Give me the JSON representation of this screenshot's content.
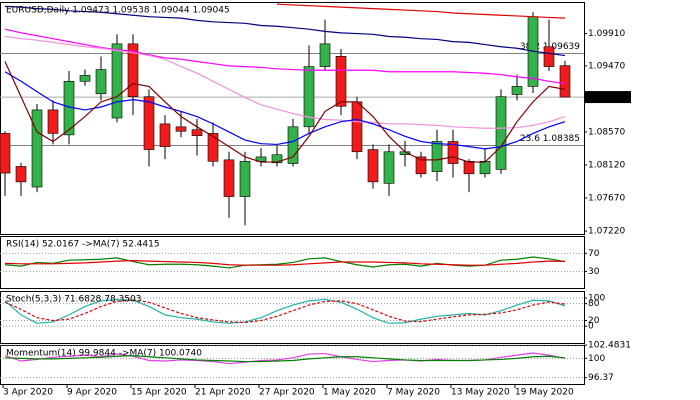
{
  "chart_data": [
    {
      "type": "candlestick",
      "title": "EURUSD,Daily  1.09473 1.09538 1.09044 1.09045",
      "categories": [
        "3 Apr 2020",
        null,
        null,
        null,
        "9 Apr 2020",
        null,
        null,
        null,
        "15 Apr 2020",
        null,
        null,
        null,
        "21 Apr 2020",
        null,
        null,
        null,
        "27 Apr 2020",
        null,
        null,
        null,
        "1 May 2020",
        null,
        null,
        null,
        "7 May 2020",
        null,
        null,
        null,
        "13 May 2020",
        null,
        null,
        null,
        "19 May 2020",
        null,
        null,
        null
      ],
      "open": [
        1.0855,
        1.081,
        1.0782,
        1.0887,
        1.0853,
        1.0926,
        1.0909,
        1.0876,
        1.0977,
        1.0905,
        1.0868,
        1.0864,
        1.086,
        1.0855,
        1.0819,
        1.0769,
        1.0817,
        1.0815,
        1.0814,
        1.0864,
        1.0946,
        1.096,
        1.0898,
        1.0833,
        1.0787,
        1.0826,
        1.0823,
        1.0803,
        1.0844,
        1.0817,
        1.08,
        1.0806,
        1.0908,
        1.0919,
        1.0973,
        1.09473
      ],
      "high": [
        1.0858,
        1.0815,
        1.0895,
        1.09,
        1.094,
        1.0942,
        1.096,
        1.099,
        1.099,
        1.0915,
        1.088,
        1.0885,
        1.0875,
        1.087,
        1.083,
        1.083,
        1.0835,
        1.0838,
        1.0875,
        1.0975,
        1.101,
        1.097,
        1.0905,
        1.084,
        1.084,
        1.0845,
        1.083,
        1.086,
        1.086,
        1.082,
        1.0835,
        1.0915,
        1.0935,
        1.102,
        1.101,
        1.09538
      ],
      "low": [
        1.077,
        1.077,
        1.0775,
        1.084,
        1.084,
        1.092,
        1.09,
        1.087,
        1.088,
        1.081,
        1.082,
        1.085,
        1.0825,
        1.081,
        1.074,
        1.073,
        1.081,
        1.081,
        1.081,
        1.0855,
        1.094,
        1.088,
        1.082,
        1.078,
        1.077,
        1.081,
        1.0795,
        1.079,
        1.0795,
        1.0775,
        1.0795,
        1.08,
        1.09,
        1.091,
        1.094,
        1.09044
      ],
      "close": [
        1.0801,
        1.0789,
        1.0887,
        1.0855,
        1.0926,
        1.0934,
        1.0942,
        1.0977,
        1.0905,
        1.0833,
        1.0837,
        1.0858,
        1.0852,
        1.0817,
        1.0769,
        1.0817,
        1.0823,
        1.0826,
        1.0864,
        1.0946,
        1.0977,
        1.0892,
        1.083,
        1.0789,
        1.083,
        1.083,
        1.08,
        1.0844,
        1.0814,
        1.08,
        1.0817,
        1.0905,
        1.0919,
        1.1014,
        1.0946,
        1.09045
      ],
      "up_color": "#33b249",
      "down_color": "#f01c1c",
      "series": [
        {
          "color": "#e00000",
          "values": [
            null,
            null,
            null,
            null,
            null,
            null,
            null,
            null,
            null,
            null,
            null,
            null,
            null,
            null,
            null,
            null,
            null,
            1.1031,
            1.103,
            1.1029,
            1.1028,
            1.1027,
            1.1026,
            1.1025,
            1.1024,
            1.1023,
            1.1022,
            1.1021,
            1.1019,
            1.1018,
            1.1017,
            1.1016,
            1.1015,
            1.1014,
            1.1013,
            1.1012
          ]
        },
        {
          "color": "#000080",
          "values": [
            1.1028,
            1.1027,
            1.1025,
            1.1024,
            1.1022,
            1.1021,
            1.102,
            1.1018,
            1.1016,
            1.1014,
            1.1013,
            1.1012,
            1.1009,
            1.1007,
            1.1006,
            1.1005,
            1.1002,
            1.1001,
            1.0999,
            1.0997,
            1.0994,
            1.0992,
            1.0991,
            1.099,
            1.0987,
            1.0986,
            1.0984,
            1.0983,
            1.098,
            1.0979,
            1.0976,
            1.0973,
            1.0971,
            1.0967,
            1.0964,
            1.0961
          ]
        },
        {
          "color": "#ff00ff",
          "values": [
            1.0997,
            1.0992,
            1.0988,
            1.0984,
            1.098,
            1.0976,
            1.0972,
            1.0969,
            1.0967,
            1.0962,
            1.0958,
            1.0956,
            1.0953,
            1.095,
            1.0947,
            1.0946,
            1.0945,
            1.0943,
            1.0942,
            1.0941,
            1.0941,
            1.0941,
            1.0941,
            1.0941,
            1.0939,
            1.0939,
            1.0939,
            1.0939,
            1.0939,
            1.0938,
            1.0937,
            1.0935,
            1.0932,
            1.093,
            1.0926,
            1.0923
          ]
        },
        {
          "color": "#ee90dd",
          "values": [
            1.0987,
            1.0984,
            1.0982,
            1.0979,
            1.0976,
            1.0973,
            1.0971,
            1.0968,
            1.0965,
            1.0961,
            1.0956,
            1.0946,
            1.0937,
            1.0926,
            1.0915,
            1.0904,
            1.0894,
            1.0888,
            1.0882,
            1.0877,
            1.0874,
            1.0873,
            1.0871,
            1.087,
            1.0868,
            1.0868,
            1.0867,
            1.0866,
            1.0864,
            1.0863,
            1.0862,
            1.0862,
            1.0863,
            1.0866,
            1.0871,
            1.0878
          ]
        },
        {
          "color": "#0000ff",
          "values": [
            1.0939,
            1.0926,
            1.0912,
            1.0898,
            1.0891,
            1.0887,
            1.0891,
            1.0898,
            1.0901,
            1.0898,
            1.0891,
            1.0885,
            1.0878,
            1.0868,
            1.0857,
            1.0846,
            1.0841,
            1.084,
            1.0844,
            1.0855,
            1.0864,
            1.0871,
            1.0874,
            1.0868,
            1.086,
            1.0851,
            1.0844,
            1.0841,
            1.084,
            1.0837,
            1.0834,
            1.0837,
            1.0844,
            1.0855,
            1.0864,
            1.0871
          ]
        },
        {
          "color": "#800000",
          "values": [
            1.0953,
            1.0905,
            1.0857,
            1.0844,
            1.086,
            1.0878,
            1.0898,
            1.0905,
            1.0923,
            1.0919,
            1.0898,
            1.0878,
            1.0864,
            1.0851,
            1.0837,
            1.0823,
            1.0816,
            1.0816,
            1.0823,
            1.0851,
            1.0885,
            1.0898,
            1.0898,
            1.0878,
            1.0851,
            1.083,
            1.0819,
            1.0819,
            1.0823,
            1.0816,
            1.0816,
            1.0837,
            1.0871,
            1.0898,
            1.0919,
            1.0915
          ]
        }
      ],
      "ylim": [
        1.0718,
        1.1034
      ],
      "yticks": [
        {
          "value": 1.0991,
          "label": "1.09910"
        },
        {
          "value": 1.0947,
          "label": "1.09470"
        },
        {
          "value": 1.0857,
          "label": "1.08570"
        },
        {
          "value": 1.0812,
          "label": "1.08120"
        },
        {
          "value": 1.0767,
          "label": "1.07670"
        },
        {
          "value": 1.0722,
          "label": "1.07220"
        }
      ],
      "fib_levels": [
        {
          "value": 1.09639,
          "label": "38.2 1.09639"
        },
        {
          "value": 1.08385,
          "label": "23.6 1.08385"
        }
      ],
      "last_price": 1.09045,
      "grid": false
    },
    {
      "type": "line",
      "title": "RSI(14) 52.0167 ->MA(7) 52.4415",
      "series": [
        {
          "color": "#008000",
          "values": [
            45,
            42,
            50,
            48,
            55,
            56,
            57,
            60,
            52,
            45,
            46,
            46,
            45,
            42,
            38,
            44,
            45,
            46,
            50,
            58,
            60,
            52,
            45,
            40,
            45,
            46,
            42,
            48,
            44,
            42,
            44,
            55,
            57,
            62,
            58,
            52.0167
          ]
        },
        {
          "color": "#e00000",
          "values": [
            48,
            47,
            47,
            47,
            48,
            49,
            51,
            53,
            54,
            53,
            52,
            51,
            50,
            48,
            45,
            44,
            44,
            44,
            45,
            47,
            49,
            51,
            51,
            51,
            50,
            49,
            47,
            46,
            45,
            44,
            44,
            46,
            48,
            51,
            53,
            52.4415
          ]
        }
      ],
      "ylim": [
        -6,
        108
      ],
      "yticks": [
        70,
        30
      ],
      "grid": true
    },
    {
      "type": "line",
      "title": "Stoch(5,3,3) 71.6828 78.3503",
      "series": [
        {
          "color": "#20b2aa",
          "values": [
            90,
            40,
            10,
            15,
            40,
            70,
            90,
            95,
            92,
            70,
            40,
            30,
            25,
            15,
            10,
            15,
            30,
            55,
            75,
            90,
            95,
            85,
            60,
            30,
            10,
            12,
            25,
            35,
            40,
            45,
            40,
            55,
            75,
            92,
            90,
            71.6828
          ]
        },
        {
          "color": "#e00000",
          "dashed": true,
          "values": [
            85,
            60,
            30,
            20,
            25,
            45,
            70,
            88,
            93,
            85,
            65,
            45,
            30,
            22,
            15,
            13,
            20,
            35,
            55,
            75,
            88,
            90,
            80,
            58,
            35,
            18,
            16,
            25,
            33,
            40,
            42,
            47,
            58,
            75,
            86,
            78.3503
          ]
        }
      ],
      "ylim": [
        -60,
        125
      ],
      "yticks": [
        100,
        80,
        20,
        0
      ],
      "grid": true
    },
    {
      "type": "line",
      "title": "Momentum(14) 99.9844 ->MA(7) 100.0740",
      "series": [
        {
          "color": "#e040e0",
          "values": [
            100.5,
            99.5,
            99.8,
            100.2,
            100.4,
            100.6,
            100.3,
            100.8,
            100.4,
            99.6,
            99.5,
            99.7,
            99.6,
            99.4,
            99.0,
            99.3,
            99.6,
            99.7,
            100.1,
            100.8,
            100.9,
            100.3,
            99.8,
            99.4,
            99.6,
            99.7,
            99.5,
            99.8,
            99.6,
            99.6,
            99.7,
            100.2,
            100.6,
            101.0,
            100.6,
            99.9844
          ]
        },
        {
          "color": "#008000",
          "values": [
            100.1,
            100.0,
            99.9,
            99.9,
            100.0,
            100.1,
            100.2,
            100.4,
            100.5,
            100.3,
            100.1,
            99.9,
            99.7,
            99.6,
            99.5,
            99.4,
            99.4,
            99.5,
            99.6,
            99.9,
            100.1,
            100.3,
            100.3,
            100.1,
            99.9,
            99.7,
            99.6,
            99.6,
            99.6,
            99.6,
            99.7,
            99.8,
            100.0,
            100.3,
            100.4,
            100.074
          ]
        }
      ],
      "ylim": [
        95.2,
        102.5
      ],
      "yticks": [
        102.4831,
        100,
        96.37
      ],
      "grid": true
    }
  ]
}
